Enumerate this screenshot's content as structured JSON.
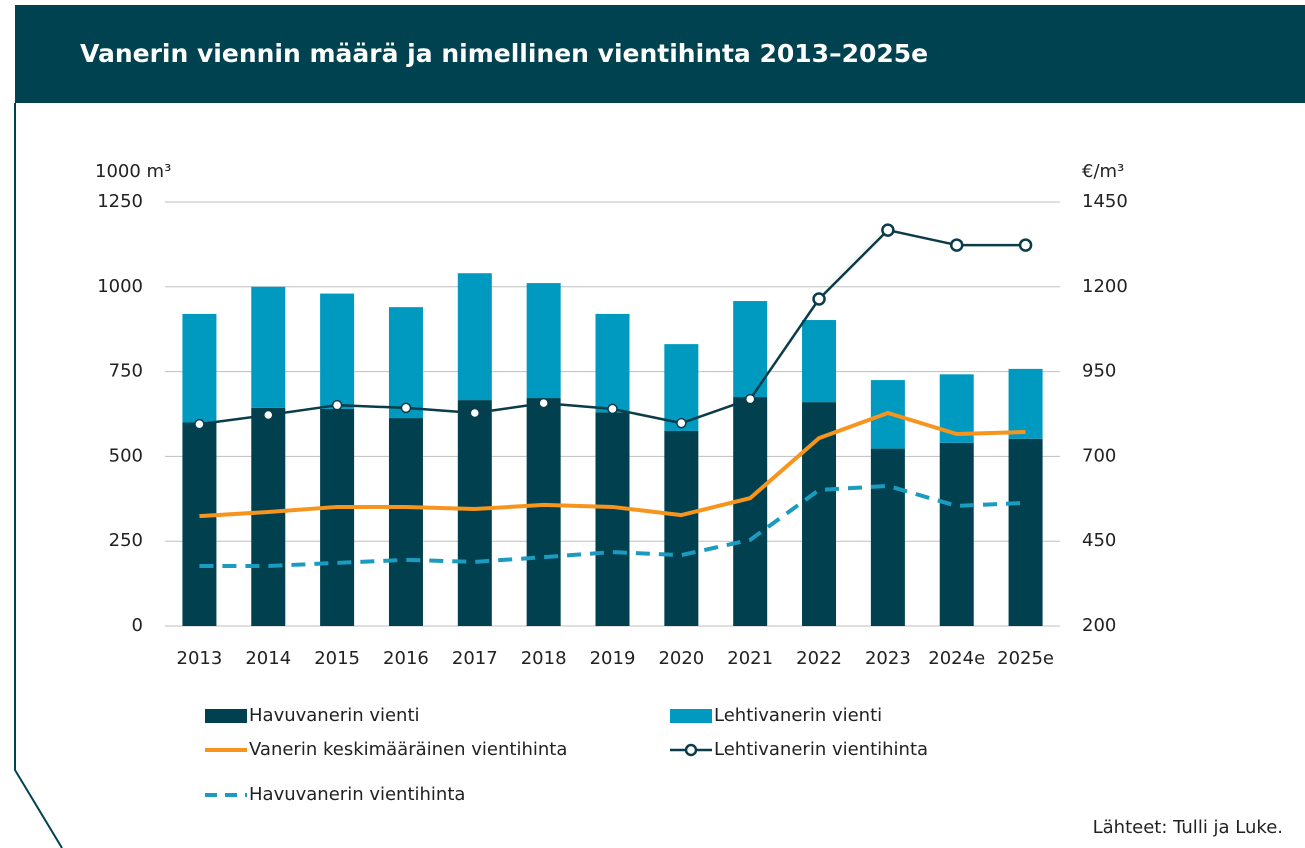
{
  "chart_data": {
    "type": "bar",
    "title": "Vanerin viennin määrä ja nimellinen vientihinta 2013–2025e",
    "y_label": "1000 m³",
    "y2_label": "€/m³",
    "source": "Lähteet: Tulli ja Luke.",
    "categories": [
      "2013",
      "2014",
      "2015",
      "2016",
      "2017",
      "2018",
      "2019",
      "2020",
      "2021",
      "2022",
      "2023",
      "2024e",
      "2025e"
    ],
    "ylim": [
      0,
      1250
    ],
    "yticks": [
      0,
      250,
      500,
      750,
      1000,
      1250
    ],
    "y2lim": [
      200,
      1450
    ],
    "y2ticks": [
      200,
      450,
      700,
      950,
      1200,
      1450
    ],
    "grid": true,
    "stacked": true,
    "series": [
      {
        "name": "Havuvanerin vienti",
        "type": "bar",
        "color": "#00404f",
        "values": [
          600,
          643,
          640,
          613,
          666,
          672,
          630,
          575,
          675,
          660,
          523,
          540,
          552
        ]
      },
      {
        "name": "Lehtivanerin vienti",
        "type": "bar",
        "color": "#0099bf",
        "values": [
          320,
          357,
          340,
          327,
          374,
          339,
          290,
          256,
          283,
          242,
          202,
          202,
          206
        ]
      },
      {
        "name": "Vanerin keskimääräinen vientihinta",
        "type": "line",
        "axis": "y2",
        "color": "#f7941d",
        "line_style": "solid",
        "values": [
          524,
          536,
          551,
          551,
          545,
          557,
          551,
          527,
          577,
          754,
          828,
          766,
          772
        ]
      },
      {
        "name": "Lehtivanerin vientihinta",
        "type": "line",
        "axis": "y2",
        "color": "#0b3c49",
        "line_style": "solid",
        "marker": "circle",
        "values": [
          795,
          822,
          851,
          843,
          828,
          857,
          840,
          798,
          869,
          1164,
          1367,
          1323,
          1323
        ]
      },
      {
        "name": "Havuvanerin vientihinta",
        "type": "line",
        "axis": "y2",
        "color": "#1a9bbf",
        "line_style": "dashed",
        "values": [
          377,
          377,
          386,
          395,
          389,
          403,
          418,
          409,
          454,
          601,
          613,
          554,
          563
        ]
      }
    ]
  }
}
